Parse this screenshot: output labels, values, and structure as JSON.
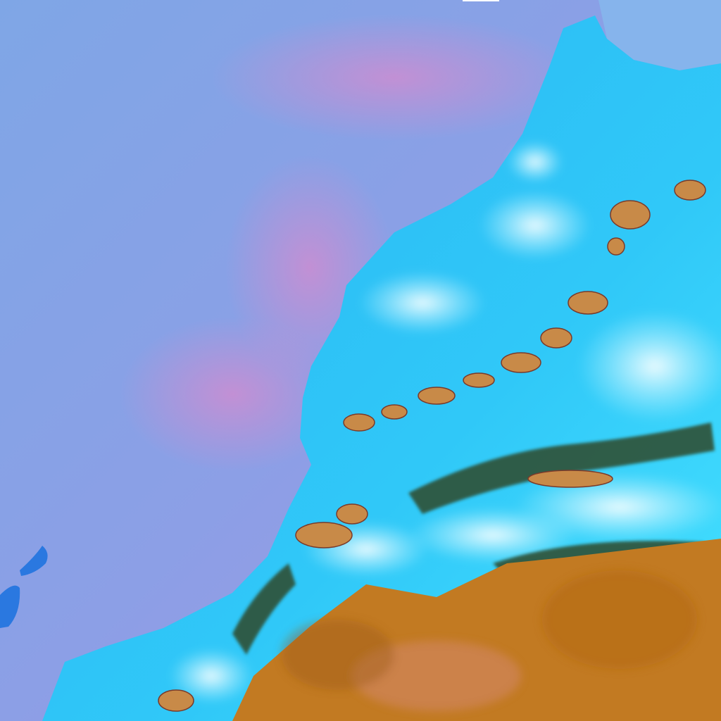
{
  "image": {
    "kind": "false-color satellite image",
    "regions": [
      "ocean",
      "coastal-land",
      "spain-corner",
      "canary-islands",
      "atlas-mountains",
      "desert",
      "clouds"
    ],
    "colors": {
      "ocean": "#8c9fe6",
      "ocean_pink": "#c48ed6",
      "ocean_blue": "#7fa6e6",
      "land": "#2ab4f2",
      "land_bright": "#46e2ff",
      "cloud": "#e8fbff",
      "spain": "#86b4ec",
      "desert": "#c27a22",
      "desert_dark": "#9c5a1a",
      "mountain": "#c88a48",
      "ridge": "#2f4a2a",
      "island": "#2a78e0"
    }
  }
}
